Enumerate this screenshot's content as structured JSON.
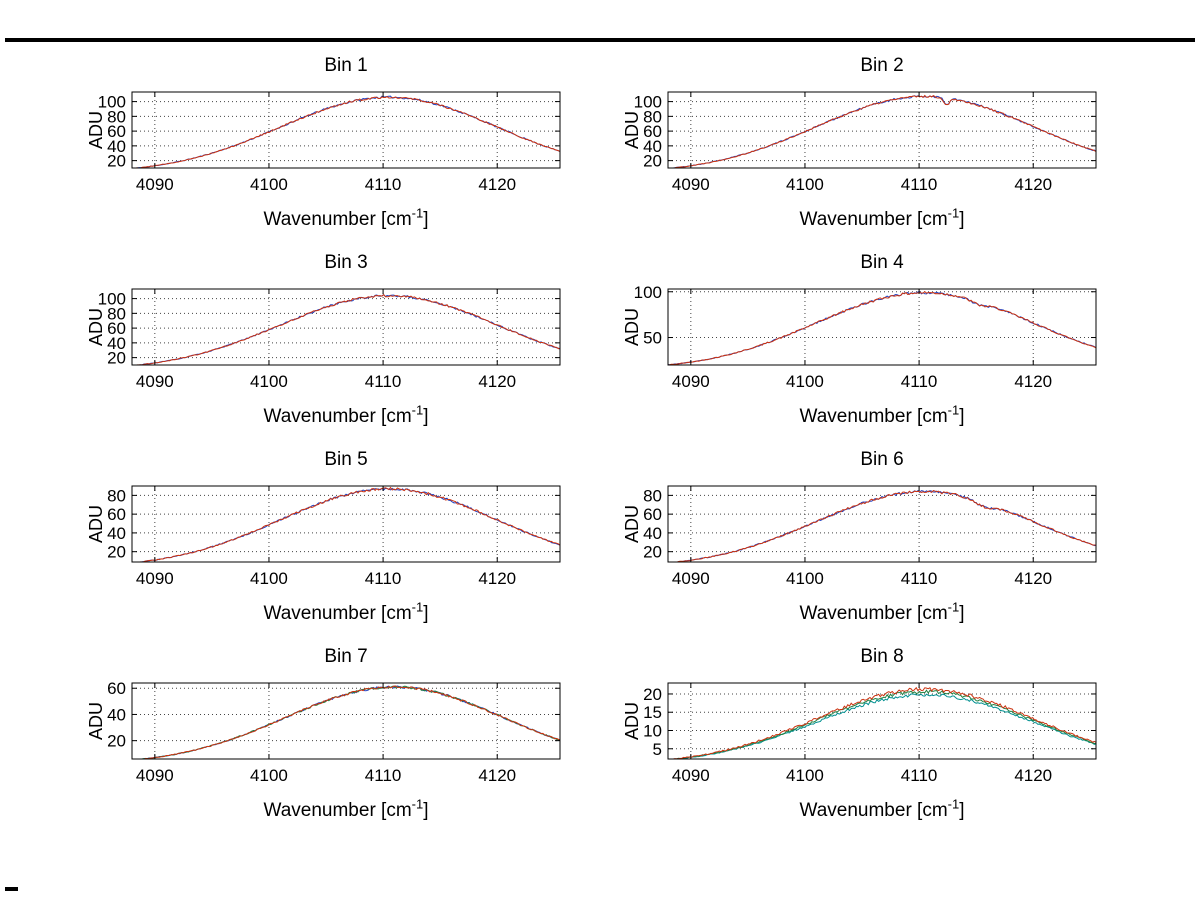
{
  "figure": {
    "background": "#ffffff",
    "border_color": "#000000",
    "grid": "on",
    "legend": "none"
  },
  "labels": {
    "ylabel": "ADU",
    "xlabel_pre": "Wavenumber [cm",
    "xlabel_sup": "-1",
    "xlabel_post": "]"
  },
  "chart_data": [
    {
      "type": "line",
      "title": "Bin 1",
      "ylabel": "ADU",
      "xlabel": "Wavenumber [cm⁻¹]",
      "xlim": [
        4088,
        4125.5
      ],
      "ylim": [
        10,
        113
      ],
      "x_ticks": [
        4090,
        4100,
        4110,
        4120
      ],
      "y_ticks": [
        20,
        40,
        60,
        80,
        100
      ],
      "x_sample": [
        4090,
        4095,
        4100,
        4105,
        4110,
        4115,
        4120,
        4125
      ],
      "series": [
        {
          "name": "trace-blue",
          "color": "#2040c0",
          "base": 3,
          "amp": 103,
          "mu": 4110.5,
          "sigma": 9.5,
          "noise": 1.4,
          "seed": 11,
          "values": [
            13,
            30,
            59,
            90,
            106,
            95,
            66,
            35
          ]
        },
        {
          "name": "trace-red",
          "color": "#cc3311",
          "base": 3,
          "amp": 103,
          "mu": 4110.5,
          "sigma": 9.5,
          "noise": 1.5,
          "seed": 12,
          "values": [
            13,
            30,
            59,
            90,
            106,
            95,
            66,
            35
          ]
        }
      ]
    },
    {
      "type": "line",
      "title": "Bin 2",
      "ylabel": "ADU",
      "xlabel": "Wavenumber [cm⁻¹]",
      "xlim": [
        4088,
        4125.5
      ],
      "ylim": [
        10,
        113
      ],
      "x_ticks": [
        4090,
        4100,
        4110,
        4120
      ],
      "y_ticks": [
        20,
        40,
        60,
        80,
        100
      ],
      "x_sample": [
        4090,
        4095,
        4100,
        4105,
        4110,
        4115,
        4120,
        4125
      ],
      "series": [
        {
          "name": "trace-blue",
          "color": "#2040c0",
          "base": 3,
          "amp": 104,
          "mu": 4110.5,
          "sigma": 9.5,
          "noise": 1.4,
          "seed": 21,
          "dips": [
            {
              "x": 4112.4,
              "depth": 10,
              "width": 0.22
            }
          ],
          "values": [
            13,
            30,
            59,
            91,
            107,
            96,
            66,
            35
          ]
        },
        {
          "name": "trace-red",
          "color": "#cc3311",
          "base": 3,
          "amp": 104,
          "mu": 4110.5,
          "sigma": 9.5,
          "noise": 1.5,
          "seed": 22,
          "dips": [
            {
              "x": 4112.4,
              "depth": 10,
              "width": 0.22
            }
          ],
          "values": [
            13,
            30,
            59,
            91,
            107,
            96,
            66,
            35
          ]
        }
      ]
    },
    {
      "type": "line",
      "title": "Bin 3",
      "ylabel": "ADU",
      "xlabel": "Wavenumber [cm⁻¹]",
      "xlim": [
        4088,
        4125.5
      ],
      "ylim": [
        10,
        113
      ],
      "x_ticks": [
        4090,
        4100,
        4110,
        4120
      ],
      "y_ticks": [
        20,
        40,
        60,
        80,
        100
      ],
      "x_sample": [
        4090,
        4095,
        4100,
        4105,
        4110,
        4115,
        4120,
        4125
      ],
      "series": [
        {
          "name": "trace-blue",
          "color": "#2040c0",
          "base": 3,
          "amp": 101,
          "mu": 4110.5,
          "sigma": 9.5,
          "noise": 1.5,
          "seed": 31,
          "values": [
            13,
            30,
            58,
            88,
            104,
            93,
            64,
            35
          ]
        },
        {
          "name": "trace-red",
          "color": "#cc3311",
          "base": 3,
          "amp": 101,
          "mu": 4110.5,
          "sigma": 9.5,
          "noise": 1.5,
          "seed": 32,
          "values": [
            13,
            30,
            58,
            88,
            104,
            93,
            64,
            35
          ]
        }
      ]
    },
    {
      "type": "line",
      "title": "Bin 4",
      "ylabel": "ADU",
      "xlabel": "Wavenumber [cm⁻¹]",
      "xlim": [
        4088,
        4125.5
      ],
      "ylim": [
        20,
        103
      ],
      "x_ticks": [
        4090,
        4100,
        4110,
        4120
      ],
      "y_ticks": [
        50,
        100
      ],
      "x_sample": [
        4090,
        4095,
        4100,
        4105,
        4110,
        4115,
        4120,
        4125
      ],
      "series": [
        {
          "name": "trace-blue",
          "color": "#2040c0",
          "base": 15,
          "amp": 84,
          "mu": 4110.5,
          "sigma": 9.5,
          "noise": 1.3,
          "seed": 41,
          "dips": [
            {
              "x": 4115.3,
              "depth": 3.5,
              "width": 0.7
            }
          ],
          "values": [
            23,
            37,
            61,
            86,
            99,
            90,
            66,
            41
          ]
        },
        {
          "name": "trace-red",
          "color": "#cc3311",
          "base": 15,
          "amp": 84,
          "mu": 4110.5,
          "sigma": 9.5,
          "noise": 1.4,
          "seed": 42,
          "dips": [
            {
              "x": 4115.3,
              "depth": 3.5,
              "width": 0.7
            }
          ],
          "values": [
            23,
            37,
            61,
            86,
            99,
            90,
            66,
            41
          ]
        }
      ]
    },
    {
      "type": "line",
      "title": "Bin 5",
      "ylabel": "ADU",
      "xlabel": "Wavenumber [cm⁻¹]",
      "xlim": [
        4088,
        4125.5
      ],
      "ylim": [
        9,
        90
      ],
      "x_ticks": [
        4090,
        4100,
        4110,
        4120
      ],
      "y_ticks": [
        20,
        40,
        60,
        80
      ],
      "x_sample": [
        4090,
        4095,
        4100,
        4105,
        4110,
        4115,
        4120,
        4125
      ],
      "series": [
        {
          "name": "trace-blue",
          "color": "#2040c0",
          "base": 3,
          "amp": 84,
          "mu": 4110.5,
          "sigma": 9.5,
          "noise": 1.3,
          "seed": 51,
          "values": [
            11,
            25,
            49,
            74,
            87,
            78,
            54,
            29
          ]
        },
        {
          "name": "trace-red",
          "color": "#cc3311",
          "base": 3,
          "amp": 84,
          "mu": 4110.5,
          "sigma": 9.5,
          "noise": 1.4,
          "seed": 52,
          "values": [
            11,
            25,
            49,
            74,
            87,
            78,
            54,
            29
          ]
        }
      ]
    },
    {
      "type": "line",
      "title": "Bin 6",
      "ylabel": "ADU",
      "xlabel": "Wavenumber [cm⁻¹]",
      "xlim": [
        4088,
        4125.5
      ],
      "ylim": [
        9,
        90
      ],
      "x_ticks": [
        4090,
        4100,
        4110,
        4120
      ],
      "y_ticks": [
        20,
        40,
        60,
        80
      ],
      "x_sample": [
        4090,
        4095,
        4100,
        4105,
        4110,
        4115,
        4120,
        4125
      ],
      "series": [
        {
          "name": "trace-blue",
          "color": "#2040c0",
          "base": 3,
          "amp": 81,
          "mu": 4110.5,
          "sigma": 9.5,
          "noise": 1.3,
          "seed": 61,
          "dips": [
            {
              "x": 4115.8,
              "depth": 5,
              "width": 0.9
            }
          ],
          "values": [
            11,
            24,
            47,
            72,
            84,
            75,
            52,
            28
          ]
        },
        {
          "name": "trace-red",
          "color": "#cc3311",
          "base": 3,
          "amp": 81,
          "mu": 4110.5,
          "sigma": 9.5,
          "noise": 1.4,
          "seed": 62,
          "dips": [
            {
              "x": 4115.8,
              "depth": 5,
              "width": 0.9
            }
          ],
          "values": [
            11,
            24,
            47,
            72,
            84,
            75,
            52,
            28
          ]
        }
      ]
    },
    {
      "type": "line",
      "title": "Bin 7",
      "ylabel": "ADU",
      "xlabel": "Wavenumber [cm⁻¹]",
      "xlim": [
        4088,
        4125.5
      ],
      "ylim": [
        6,
        64
      ],
      "x_ticks": [
        4090,
        4100,
        4110,
        4120
      ],
      "y_ticks": [
        20,
        40,
        60
      ],
      "x_sample": [
        4090,
        4095,
        4100,
        4105,
        4110,
        4115,
        4120,
        4125
      ],
      "series": [
        {
          "name": "trace-blue",
          "color": "#2040c0",
          "base": 2,
          "amp": 59,
          "mu": 4111,
          "sigma": 9.5,
          "noise": 0.9,
          "seed": 71,
          "values": [
            8,
            18,
            34,
            52,
            61,
            55,
            38,
            20
          ]
        },
        {
          "name": "trace-green",
          "color": "#208040",
          "base": 2,
          "amp": 59,
          "mu": 4111,
          "sigma": 9.5,
          "noise": 0.9,
          "seed": 72,
          "values": [
            8,
            18,
            34,
            52,
            61,
            55,
            38,
            20
          ]
        },
        {
          "name": "trace-red",
          "color": "#cc3311",
          "base": 2,
          "amp": 59,
          "mu": 4111,
          "sigma": 9.5,
          "noise": 0.9,
          "seed": 73,
          "values": [
            8,
            18,
            34,
            52,
            61,
            55,
            38,
            20
          ]
        }
      ]
    },
    {
      "type": "line",
      "title": "Bin 8",
      "ylabel": "ADU",
      "xlabel": "Wavenumber [cm⁻¹]",
      "xlim": [
        4088,
        4125.5
      ],
      "ylim": [
        2.2,
        23
      ],
      "x_ticks": [
        4090,
        4100,
        4110,
        4120
      ],
      "y_ticks": [
        5,
        10,
        15,
        20
      ],
      "x_sample": [
        4090,
        4095,
        4100,
        4105,
        4110,
        4115,
        4120,
        4125
      ],
      "series": [
        {
          "name": "trace-teal",
          "color": "#009090",
          "base": 0.8,
          "amp": 19,
          "mu": 4110.5,
          "sigma": 9.5,
          "noise": 0.4,
          "seed": 81,
          "values": [
            2.6,
            5.8,
            11.1,
            16.9,
            19.8,
            17.8,
            12.3,
            6.7
          ]
        },
        {
          "name": "trace-green",
          "color": "#208040",
          "base": 0.8,
          "amp": 19.8,
          "mu": 4110.5,
          "sigma": 9.5,
          "noise": 0.45,
          "seed": 82,
          "values": [
            2.7,
            6.0,
            11.6,
            17.6,
            20.6,
            18.5,
            12.8,
            7.0
          ]
        },
        {
          "name": "trace-red",
          "color": "#cc3311",
          "base": 0.8,
          "amp": 20.5,
          "mu": 4110.5,
          "sigma": 9.5,
          "noise": 0.5,
          "seed": 83,
          "values": [
            2.8,
            6.2,
            11.9,
            18.1,
            21.3,
            19.1,
            13.2,
            7.2
          ]
        }
      ]
    }
  ]
}
